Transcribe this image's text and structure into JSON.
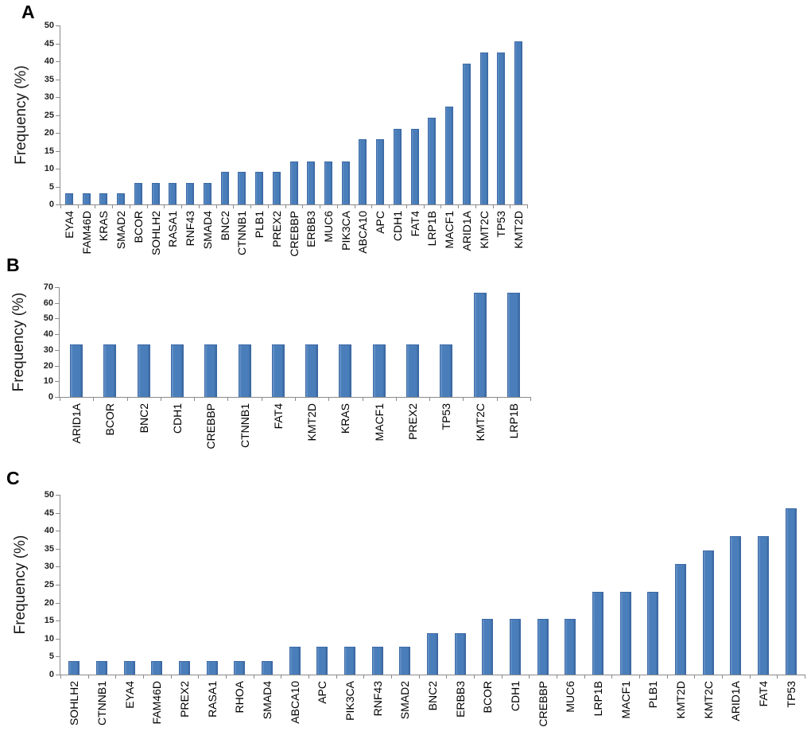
{
  "colors": {
    "bar_fill": "#4A7EBB",
    "bar_border": "#3C69A5",
    "axis_line": "#8A8A8A",
    "tick_label_text": "#1F1F1F",
    "category_label_text": "#000000"
  },
  "chart_data": [
    {
      "type": "bar",
      "panel_label": "A",
      "title": "",
      "xlabel": "",
      "ylabel": "Frequency (%)",
      "ylim": [
        0,
        50
      ],
      "ytick_step": 5,
      "grid": false,
      "legend": "none",
      "categories": [
        "EYA4",
        "FAM46D",
        "KRAS",
        "SMAD2",
        "BCOR",
        "SOHLH2",
        "RASA1",
        "RNF43",
        "SMAD4",
        "BNC2",
        "CTNNB1",
        "PLB1",
        "PREX2",
        "CREBBP",
        "ERBB3",
        "MUC6",
        "PIK3CA",
        "ABCA10",
        "APC",
        "CDH1",
        "FAT4",
        "LRP1B",
        "MACF1",
        "ARID1A",
        "KMT2C",
        "TP53",
        "KMT2D"
      ],
      "values": [
        3,
        3,
        3,
        3,
        6.1,
        6.1,
        6.1,
        6.1,
        6.1,
        9.1,
        9.1,
        9.1,
        9.1,
        12.1,
        12.1,
        12.1,
        12.1,
        18.2,
        18.2,
        21.2,
        21.2,
        24.2,
        27.3,
        39.4,
        42.4,
        42.4,
        45.5
      ]
    },
    {
      "type": "bar",
      "panel_label": "B",
      "title": "",
      "xlabel": "",
      "ylabel": "Frequency (%)",
      "ylim": [
        0,
        70
      ],
      "ytick_step": 10,
      "grid": false,
      "legend": "none",
      "categories": [
        "ARID1A",
        "BCOR",
        "BNC2",
        "CDH1",
        "CREBBP",
        "CTNNB1",
        "FAT4",
        "KMT2D",
        "KRAS",
        "MACF1",
        "PREX2",
        "TP53",
        "KMT2C",
        "LRP1B"
      ],
      "values": [
        33.3,
        33.3,
        33.3,
        33.3,
        33.3,
        33.3,
        33.3,
        33.3,
        33.3,
        33.3,
        33.3,
        33.3,
        66.7,
        66.7
      ]
    },
    {
      "type": "bar",
      "panel_label": "C",
      "title": "",
      "xlabel": "",
      "ylabel": "Frequency (%)",
      "ylim": [
        0,
        50
      ],
      "ytick_step": 5,
      "grid": false,
      "legend": "none",
      "categories": [
        "SOHLH2",
        "CTNNB1",
        "EYA4",
        "FAM46D",
        "PREX2",
        "RASA1",
        "RHOA",
        "SMAD4",
        "ABCA10",
        "APC",
        "PIK3CA",
        "RNF43",
        "SMAD2",
        "BNC2",
        "ERBB3",
        "BCOR",
        "CDH1",
        "CREBBP",
        "MUC6",
        "LRP1B",
        "MACF1",
        "PLB1",
        "KMT2D",
        "KMT2C",
        "ARID1A",
        "FAT4",
        "TP53"
      ],
      "values": [
        3.8,
        3.8,
        3.8,
        3.8,
        3.8,
        3.8,
        3.8,
        3.8,
        7.7,
        7.7,
        7.7,
        7.7,
        7.7,
        11.5,
        11.5,
        15.4,
        15.4,
        15.4,
        15.4,
        23.1,
        23.1,
        23.1,
        30.8,
        34.6,
        38.5,
        38.5,
        46.2
      ]
    }
  ]
}
